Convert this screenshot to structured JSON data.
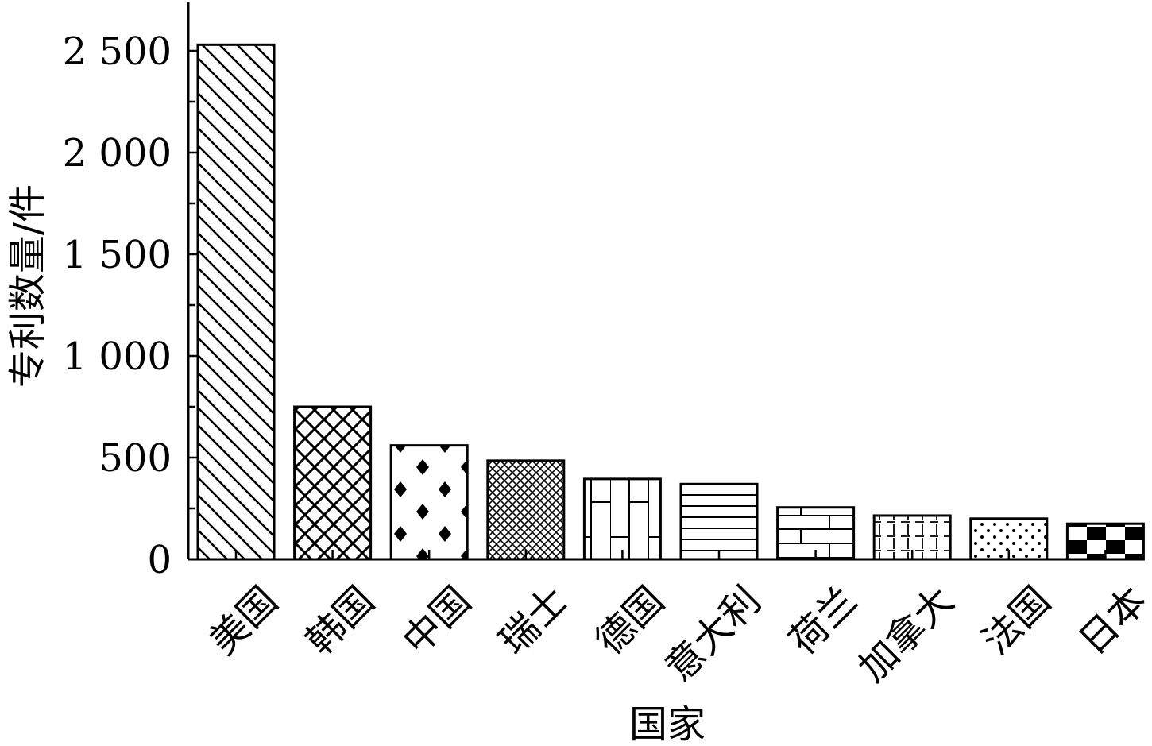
{
  "chart_data": {
    "type": "bar",
    "title": "",
    "xlabel": "国家",
    "ylabel": "专利数量/件",
    "categories": [
      "美国",
      "韩国",
      "中国",
      "瑞士",
      "德国",
      "意大利",
      "荷兰",
      "加拿大",
      "法国",
      "日本"
    ],
    "values": [
      2530,
      750,
      560,
      485,
      395,
      370,
      255,
      215,
      200,
      175
    ],
    "yticks": [
      0,
      500,
      1000,
      1500,
      2000,
      2500
    ],
    "ytick_labels": [
      "0",
      "500",
      "1 000",
      "1 500",
      "2 000",
      "2 500"
    ],
    "ylim": [
      0,
      2750
    ],
    "patterns": [
      "diagonal-lines",
      "crosshatch-wide",
      "diamonds",
      "crosshatch-dense",
      "brick-vertical",
      "horizontal-lines",
      "brick",
      "dashed-grid",
      "dots",
      "checkerboard"
    ],
    "grid": false,
    "legend": "none"
  }
}
